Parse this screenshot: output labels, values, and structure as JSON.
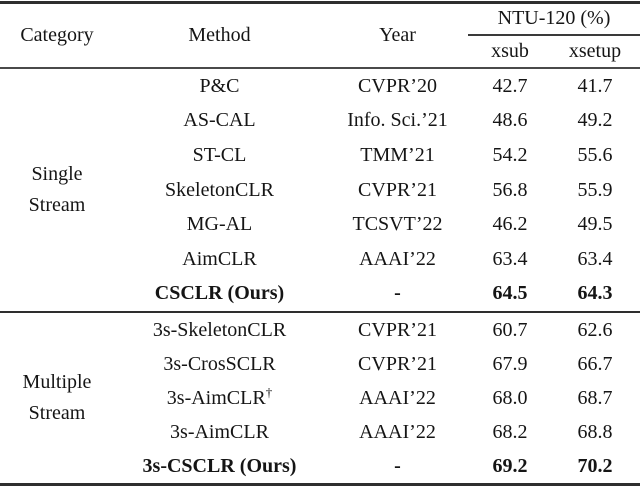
{
  "table": {
    "header": {
      "category": "Category",
      "method": "Method",
      "year": "Year",
      "group": "NTU-120 (%)",
      "xsub": "xsub",
      "xsetup": "xsetup"
    },
    "sections": [
      {
        "category_line1": "Single",
        "category_line2": "Stream",
        "rows": [
          {
            "method": "P&C",
            "year": "CVPR’20",
            "xsub": "42.7",
            "xsetup": "41.7"
          },
          {
            "method": "AS-CAL",
            "year": "Info. Sci.’21",
            "xsub": "48.6",
            "xsetup": "49.2"
          },
          {
            "method": "ST-CL",
            "year": "TMM’21",
            "xsub": "54.2",
            "xsetup": "55.6"
          },
          {
            "method": "SkeletonCLR",
            "year": "CVPR’21",
            "xsub": "56.8",
            "xsetup": "55.9"
          },
          {
            "method": "MG-AL",
            "year": "TCSVT’22",
            "xsub": "46.2",
            "xsetup": "49.5"
          },
          {
            "method": "AimCLR",
            "year": "AAAI’22",
            "xsub": "63.4",
            "xsetup": "63.4"
          },
          {
            "method": "CSCLR (Ours)",
            "year": "-",
            "xsub": "64.5",
            "xsetup": "64.3",
            "bold": true
          }
        ]
      },
      {
        "category_line1": "Multiple",
        "category_line2": "Stream",
        "rows": [
          {
            "method": "3s-SkeletonCLR",
            "year": "CVPR’21",
            "xsub": "60.7",
            "xsetup": "62.6"
          },
          {
            "method": "3s-CrosSCLR",
            "year": "CVPR’21",
            "xsub": "67.9",
            "xsetup": "66.7"
          },
          {
            "method": "3s-AimCLR",
            "method_sup": "†",
            "year": "AAAI’22",
            "xsub": "68.0",
            "xsetup": "68.7"
          },
          {
            "method": "3s-AimCLR",
            "year": "AAAI’22",
            "xsub": "68.2",
            "xsetup": "68.8"
          },
          {
            "method": "3s-CSCLR (Ours)",
            "year": "-",
            "xsub": "69.2",
            "xsetup": "70.2",
            "bold": true
          }
        ]
      }
    ]
  }
}
